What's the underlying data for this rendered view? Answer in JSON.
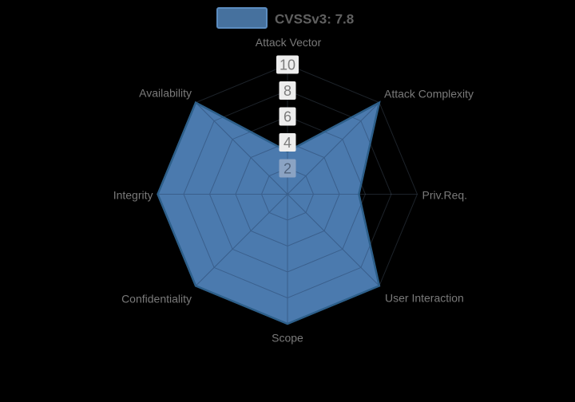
{
  "legend": {
    "label": "CVSSv3: 7.8"
  },
  "chart_data": {
    "type": "radar",
    "title": "",
    "legend_position": "top-center",
    "grid": true,
    "categories": [
      "Attack Vector",
      "Attack Complexity",
      "Priv.Req.",
      "User Interaction",
      "Scope",
      "Confidentiality",
      "Integrity",
      "Availability"
    ],
    "ticks": [
      2,
      4,
      6,
      8,
      10
    ],
    "rmin": 0,
    "rmax": 10,
    "series": [
      {
        "name": "CVSSv3: 7.8",
        "values": [
          3.3,
          10,
          5.5,
          10,
          10,
          10,
          10,
          10
        ]
      }
    ]
  },
  "colors": {
    "background": "#000000",
    "series_fill": "#4b7aae",
    "series_line": "#2d5f8a",
    "grid_line_over_fill": "#3a5f8c",
    "grid_line_faint": "rgba(95,115,140,0.3)",
    "tick_box": "#ededed",
    "tick_text": "#7c7c7c",
    "tick_box_inner": "#8ba3c3",
    "tick_text_inner": "#50627b",
    "axis_label_text": "#7a7a7a",
    "legend_text": "#606060",
    "legend_swatch_fill": "#46719e",
    "legend_swatch_border": "#5b8cc0"
  }
}
